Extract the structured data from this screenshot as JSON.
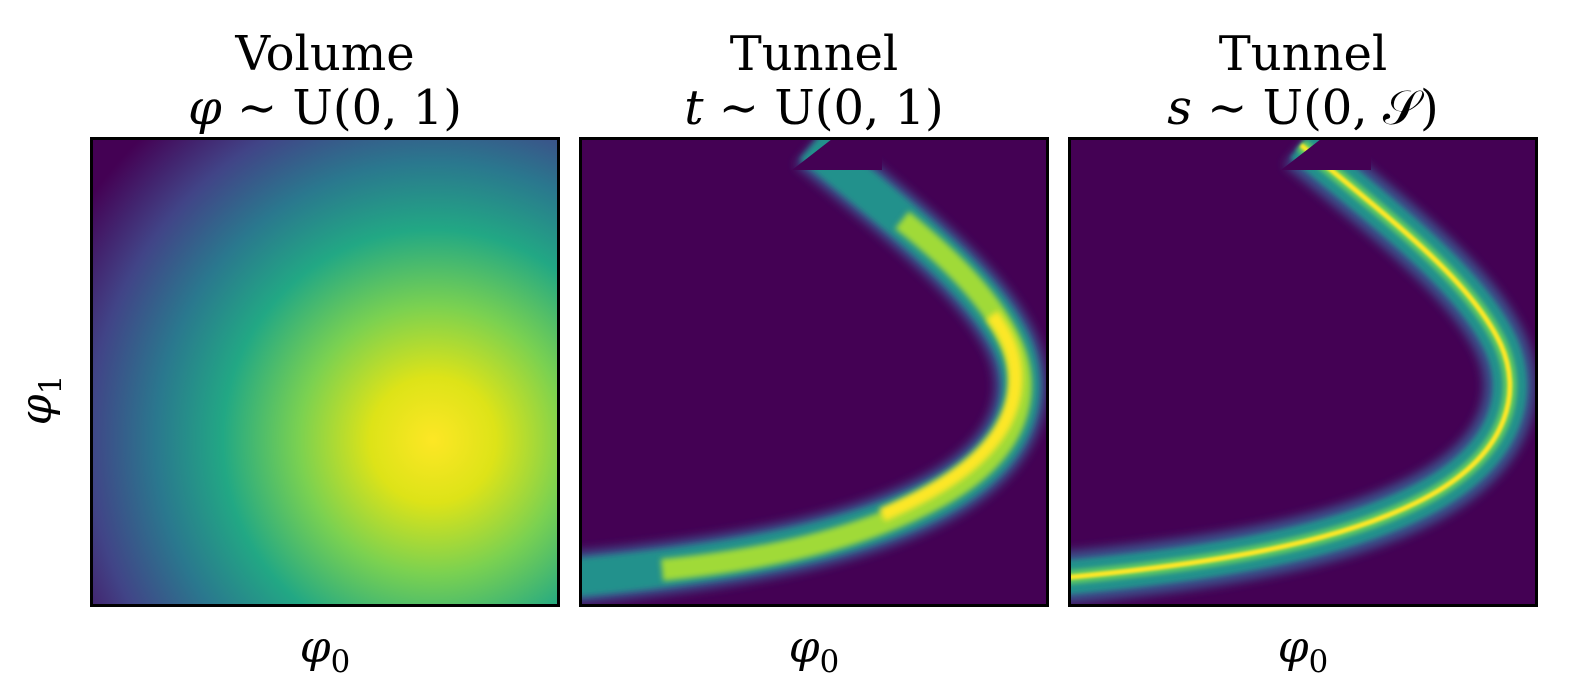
{
  "chart_data": [
    {
      "type": "heatmap",
      "title": "Volume",
      "subtitle": "φ ∼ U(0, 1)",
      "xlabel": "φ0",
      "ylabel": "φ1",
      "colormap": "viridis",
      "peak": "lower-right",
      "ticks": false
    },
    {
      "type": "heatmap",
      "title": "Tunnel",
      "subtitle": "t ∼ U(0, 1)",
      "xlabel": "φ0",
      "ylabel": "",
      "colormap": "viridis",
      "shape": "curved tunnel band",
      "ticks": false
    },
    {
      "type": "heatmap",
      "title": "Tunnel",
      "subtitle": "s ∼ U(0, 𝒮)",
      "xlabel": "φ0",
      "ylabel": "",
      "colormap": "viridis",
      "shape": "curved tunnel band",
      "ticks": false
    }
  ],
  "text": {
    "p1_title": "Volume",
    "p1_sub_var": "φ",
    "p1_sub_rest": " ∼ U(0, 1)",
    "p2_title": "Tunnel",
    "p2_sub_var": "t",
    "p2_sub_rest": " ∼ U(0, 1)",
    "p3_title": "Tunnel",
    "p3_sub_var": "s",
    "p3_sub_rest": " ∼ U(0, 𝒮)",
    "xlabel_base": "φ",
    "xlabel_sub": "0",
    "ylabel_base": "φ",
    "ylabel_sub": "1"
  },
  "colors": {
    "viridis_dark": "#440154",
    "viridis_purple": "#3b528b",
    "viridis_teal": "#21918c",
    "viridis_green": "#5ec962",
    "viridis_yellow": "#fde725"
  }
}
